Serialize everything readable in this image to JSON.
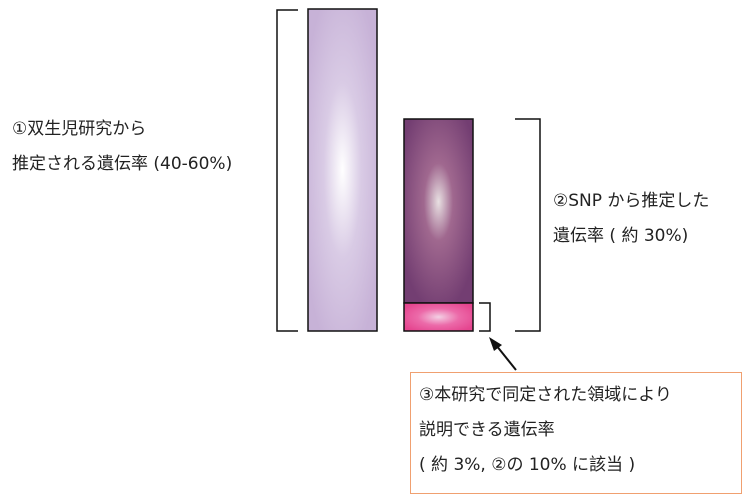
{
  "labels": {
    "twin_heritability": {
      "line1": "①双生児研究から",
      "line2": "推定される遺伝率 (40-60%)"
    },
    "snp_heritability": {
      "line1": "②SNP から推定した",
      "line2": "遺伝率 ( 約 30%)"
    },
    "region_heritability": {
      "line1": "③本研究で同定された領域により",
      "line2": "説明できる遺伝率",
      "line3": "( 約 3%, ②の 10% に該当 )"
    }
  },
  "colors": {
    "twin_bar": "#c9b6d8",
    "snp_bar": "#7a4376",
    "region_bar": "#e84a96",
    "callout_border": "#f0a070",
    "bracket": "#111111"
  }
}
